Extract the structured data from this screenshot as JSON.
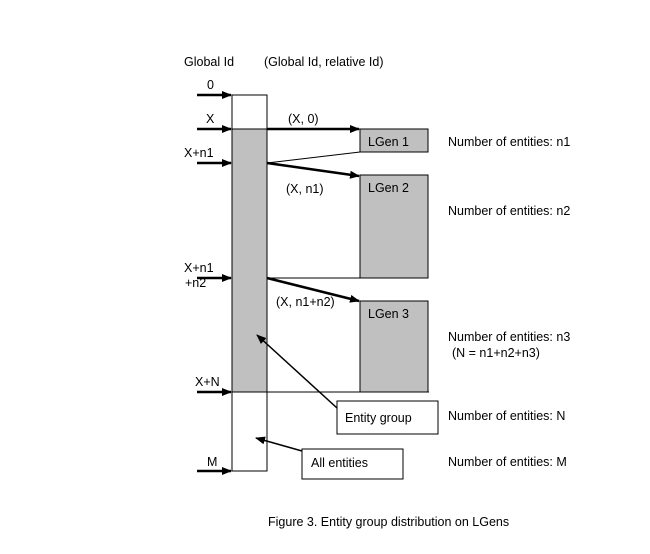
{
  "headers": {
    "global_id": "Global Id",
    "pair": "(Global Id, relative Id)"
  },
  "ids": {
    "zero": "0",
    "x": "X",
    "x_n1": "X+n1",
    "x_n1_n2_line1": "X+n1",
    "x_n1_n2_line2": "+n2",
    "x_n": "X+N",
    "m": "M"
  },
  "pairs": {
    "first": "(X, 0)",
    "second": "(X, n1)",
    "third": "(X, n1+n2)"
  },
  "lgens": {
    "lgen1": "LGen 1",
    "lgen2": "LGen 2",
    "lgen3": "LGen 3"
  },
  "counts": {
    "n1": "Number of entities: n1",
    "n2": "Number of entities: n2",
    "n3": "Number of entities: n3",
    "n3_note": "(N = n1+n2+n3)",
    "big_n": "Number of entities: N",
    "m": "Number of entities: M"
  },
  "callouts": {
    "entity_group": "Entity group",
    "all_entities": "All entities"
  },
  "caption": "Figure 3. Entity group distribution on LGens",
  "colors": {
    "fill_gray": "#c0c0c0",
    "stroke": "#000000",
    "background": "#ffffff"
  }
}
